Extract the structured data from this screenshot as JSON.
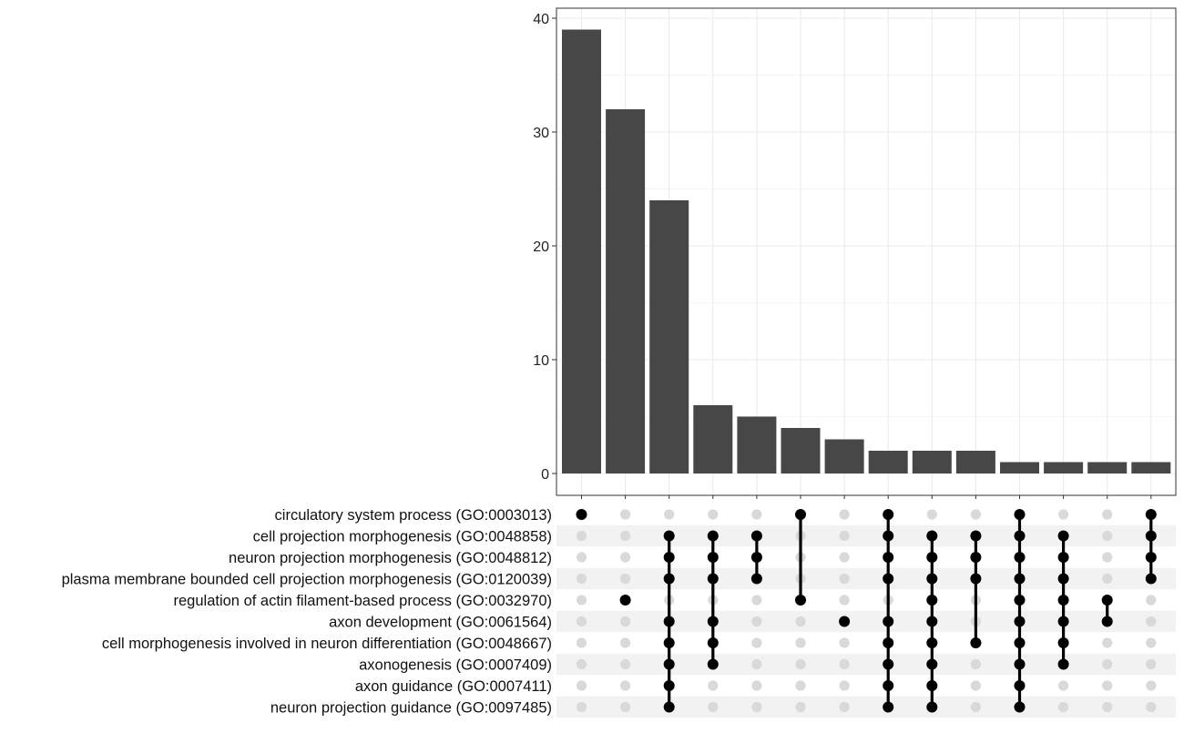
{
  "chart_data": {
    "type": "upset",
    "title": "",
    "xlabel": "",
    "ylabel": "",
    "ylim": [
      0,
      41
    ],
    "yticks": [
      "0",
      "10",
      "20",
      "30",
      "40"
    ],
    "grid": true,
    "sets": [
      "circulatory system process (GO:0003013)",
      "cell projection morphogenesis (GO:0048858)",
      "neuron projection morphogenesis (GO:0048812)",
      "plasma membrane bounded cell projection morphogenesis (GO:0120039)",
      "regulation of actin filament-based process (GO:0032970)",
      "axon development (GO:0061564)",
      "cell morphogenesis involved in neuron differentiation (GO:0048667)",
      "axonogenesis (GO:0007409)",
      "axon guidance (GO:0007411)",
      "neuron projection guidance (GO:0097485)"
    ],
    "intersections": [
      {
        "size": 39,
        "members": [
          0
        ]
      },
      {
        "size": 32,
        "members": [
          4
        ]
      },
      {
        "size": 24,
        "members": [
          1,
          2,
          3,
          5,
          6,
          7,
          8,
          9
        ]
      },
      {
        "size": 6,
        "members": [
          1,
          2,
          3,
          5,
          6,
          7
        ]
      },
      {
        "size": 5,
        "members": [
          1,
          2,
          3
        ]
      },
      {
        "size": 4,
        "members": [
          0,
          4
        ]
      },
      {
        "size": 3,
        "members": [
          5
        ]
      },
      {
        "size": 2,
        "members": [
          0,
          1,
          2,
          3,
          5,
          6,
          7,
          8,
          9
        ]
      },
      {
        "size": 2,
        "members": [
          1,
          2,
          3,
          4,
          5,
          6,
          7,
          8,
          9
        ]
      },
      {
        "size": 2,
        "members": [
          1,
          2,
          3,
          6
        ]
      },
      {
        "size": 1,
        "members": [
          0,
          1,
          2,
          3,
          4,
          5,
          6,
          7,
          8,
          9
        ]
      },
      {
        "size": 1,
        "members": [
          1,
          2,
          3,
          4,
          5,
          6,
          7
        ]
      },
      {
        "size": 1,
        "members": [
          4,
          5
        ]
      },
      {
        "size": 1,
        "members": [
          0,
          1,
          2,
          3
        ]
      }
    ],
    "colors": {
      "bar": "#474747",
      "dot_active": "#000000",
      "dot_inactive": "#d9d9d9",
      "stripe": "#f2f2f2",
      "grid": "#ebebeb",
      "panel_border": "#333333"
    }
  }
}
